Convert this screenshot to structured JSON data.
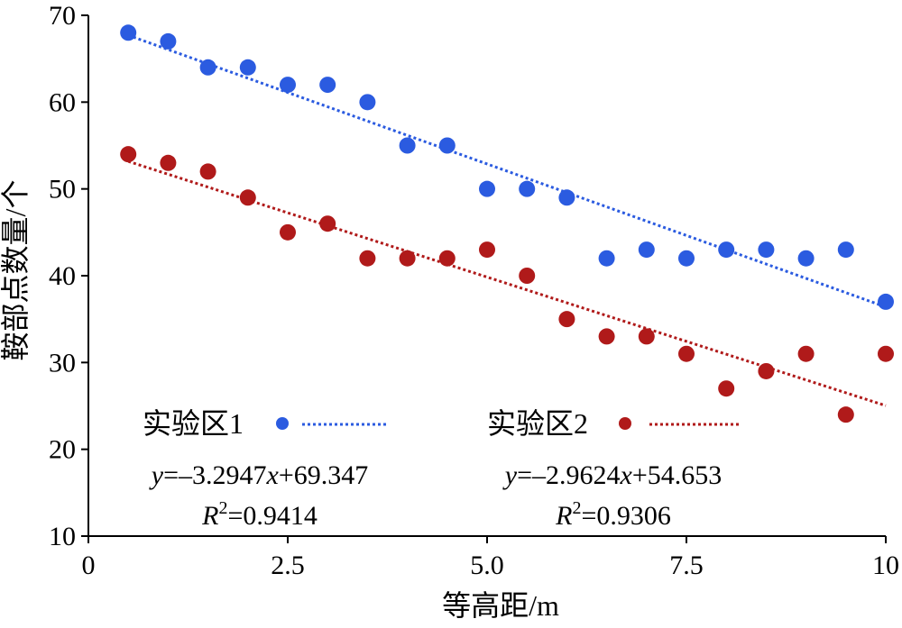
{
  "chart_data": {
    "type": "scatter",
    "title": "",
    "xlabel": "等高距/m",
    "ylabel": "鞍部点数量/个",
    "xlim": [
      0,
      10
    ],
    "ylim": [
      10,
      70
    ],
    "grid": false,
    "xticks": [
      {
        "value": 0,
        "label": "0"
      },
      {
        "value": 2.5,
        "label": "2.5"
      },
      {
        "value": 5,
        "label": "5.0"
      },
      {
        "value": 7.5,
        "label": "7.5"
      },
      {
        "value": 10,
        "label": "10"
      }
    ],
    "yticks": [
      {
        "value": 10,
        "label": "10"
      },
      {
        "value": 20,
        "label": "20"
      },
      {
        "value": 30,
        "label": "30"
      },
      {
        "value": 40,
        "label": "40"
      },
      {
        "value": 50,
        "label": "50"
      },
      {
        "value": 60,
        "label": "60"
      },
      {
        "value": 70,
        "label": "70"
      }
    ],
    "x": [
      0.5,
      1.0,
      1.5,
      2.0,
      2.5,
      3.0,
      3.5,
      4.0,
      4.5,
      5.0,
      5.5,
      6.0,
      6.5,
      7.0,
      7.5,
      8.0,
      8.5,
      9.0,
      9.5,
      10.0
    ],
    "series": [
      {
        "name": "实验区1",
        "color": "#2b5be0",
        "values": [
          68,
          67,
          64,
          64,
          62,
          62,
          60,
          55,
          55,
          50,
          50,
          49,
          42,
          43,
          42,
          43,
          43,
          42,
          43,
          37
        ],
        "trendline": {
          "slope": -3.2947,
          "intercept": 69.347,
          "x_range": [
            0.5,
            10
          ]
        },
        "equation": {
          "y": "y",
          "rest": "=–3.2947",
          "x": "x",
          "tail": "+69.347"
        },
        "r2": {
          "R": "R",
          "sup": "2",
          "value": "=0.9414"
        }
      },
      {
        "name": "实验区2",
        "color": "#b01a1a",
        "values": [
          54,
          53,
          52,
          49,
          45,
          46,
          42,
          42,
          42,
          43,
          40,
          35,
          33,
          33,
          31,
          27,
          29,
          31,
          24,
          31
        ],
        "trendline": {
          "slope": -2.9624,
          "intercept": 54.653,
          "x_range": [
            0.5,
            10
          ]
        },
        "equation": {
          "y": "y",
          "rest": "=–2.9624",
          "x": "x",
          "tail": "+54.653"
        },
        "r2": {
          "R": "R",
          "sup": "2",
          "value": "=0.9306"
        }
      }
    ],
    "legend_position": "bottom-left"
  }
}
